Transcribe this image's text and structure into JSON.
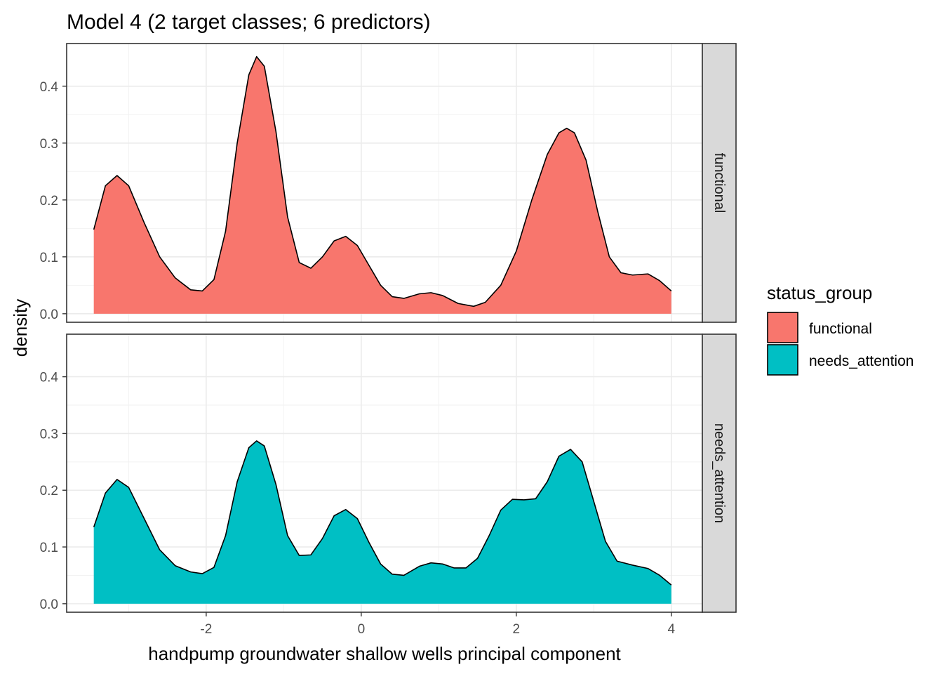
{
  "chart_data": {
    "type": "area",
    "title": "Model 4 (2 target classes; 6 predictors)",
    "xlabel": "handpump groundwater shallow wells principal component",
    "ylabel": "density",
    "xlim": [
      -3.8,
      4.4
    ],
    "ylim": [
      -0.015,
      0.475
    ],
    "x_ticks": [
      -2,
      0,
      2,
      4
    ],
    "x_tick_labels": [
      "-2",
      "0",
      "2",
      "4"
    ],
    "y_ticks": [
      0.0,
      0.1,
      0.2,
      0.3,
      0.4
    ],
    "y_tick_labels": [
      "0.0",
      "0.1",
      "0.2",
      "0.3",
      "0.4"
    ],
    "grid": true,
    "legend": {
      "title": "status_group",
      "placement": "right",
      "entries": [
        {
          "label": "functional",
          "color": "#F8766D"
        },
        {
          "label": "needs_attention",
          "color": "#00BFC4"
        }
      ]
    },
    "facets": [
      {
        "label": "functional",
        "color": "#F8766D",
        "points": [
          [
            -3.45,
            0.148
          ],
          [
            -3.3,
            0.225
          ],
          [
            -3.15,
            0.243
          ],
          [
            -3.0,
            0.225
          ],
          [
            -2.8,
            0.16
          ],
          [
            -2.6,
            0.1
          ],
          [
            -2.4,
            0.063
          ],
          [
            -2.2,
            0.042
          ],
          [
            -2.05,
            0.04
          ],
          [
            -1.9,
            0.06
          ],
          [
            -1.75,
            0.145
          ],
          [
            -1.6,
            0.3
          ],
          [
            -1.45,
            0.42
          ],
          [
            -1.35,
            0.452
          ],
          [
            -1.25,
            0.435
          ],
          [
            -1.1,
            0.32
          ],
          [
            -0.95,
            0.17
          ],
          [
            -0.8,
            0.09
          ],
          [
            -0.65,
            0.08
          ],
          [
            -0.5,
            0.1
          ],
          [
            -0.35,
            0.128
          ],
          [
            -0.2,
            0.136
          ],
          [
            -0.05,
            0.12
          ],
          [
            0.1,
            0.085
          ],
          [
            0.25,
            0.05
          ],
          [
            0.4,
            0.03
          ],
          [
            0.55,
            0.027
          ],
          [
            0.75,
            0.035
          ],
          [
            0.9,
            0.037
          ],
          [
            1.05,
            0.032
          ],
          [
            1.25,
            0.018
          ],
          [
            1.45,
            0.013
          ],
          [
            1.6,
            0.02
          ],
          [
            1.8,
            0.05
          ],
          [
            2.0,
            0.11
          ],
          [
            2.2,
            0.2
          ],
          [
            2.4,
            0.28
          ],
          [
            2.55,
            0.318
          ],
          [
            2.65,
            0.326
          ],
          [
            2.75,
            0.318
          ],
          [
            2.9,
            0.27
          ],
          [
            3.05,
            0.18
          ],
          [
            3.2,
            0.1
          ],
          [
            3.35,
            0.072
          ],
          [
            3.5,
            0.068
          ],
          [
            3.7,
            0.07
          ],
          [
            3.85,
            0.058
          ],
          [
            4.0,
            0.04
          ]
        ]
      },
      {
        "label": "needs_attention",
        "color": "#00BFC4",
        "points": [
          [
            -3.45,
            0.135
          ],
          [
            -3.3,
            0.195
          ],
          [
            -3.15,
            0.219
          ],
          [
            -3.0,
            0.205
          ],
          [
            -2.8,
            0.15
          ],
          [
            -2.6,
            0.095
          ],
          [
            -2.4,
            0.067
          ],
          [
            -2.2,
            0.056
          ],
          [
            -2.05,
            0.053
          ],
          [
            -1.9,
            0.064
          ],
          [
            -1.75,
            0.12
          ],
          [
            -1.6,
            0.215
          ],
          [
            -1.45,
            0.275
          ],
          [
            -1.35,
            0.287
          ],
          [
            -1.25,
            0.278
          ],
          [
            -1.1,
            0.21
          ],
          [
            -0.95,
            0.12
          ],
          [
            -0.8,
            0.085
          ],
          [
            -0.65,
            0.086
          ],
          [
            -0.5,
            0.115
          ],
          [
            -0.35,
            0.155
          ],
          [
            -0.2,
            0.166
          ],
          [
            -0.05,
            0.15
          ],
          [
            0.1,
            0.108
          ],
          [
            0.25,
            0.07
          ],
          [
            0.4,
            0.052
          ],
          [
            0.55,
            0.05
          ],
          [
            0.75,
            0.066
          ],
          [
            0.9,
            0.072
          ],
          [
            1.05,
            0.07
          ],
          [
            1.2,
            0.063
          ],
          [
            1.35,
            0.063
          ],
          [
            1.5,
            0.08
          ],
          [
            1.65,
            0.12
          ],
          [
            1.8,
            0.165
          ],
          [
            1.95,
            0.184
          ],
          [
            2.1,
            0.183
          ],
          [
            2.25,
            0.185
          ],
          [
            2.4,
            0.215
          ],
          [
            2.55,
            0.26
          ],
          [
            2.7,
            0.272
          ],
          [
            2.85,
            0.25
          ],
          [
            3.0,
            0.18
          ],
          [
            3.15,
            0.11
          ],
          [
            3.3,
            0.075
          ],
          [
            3.5,
            0.068
          ],
          [
            3.7,
            0.062
          ],
          [
            3.85,
            0.05
          ],
          [
            4.0,
            0.033
          ]
        ]
      }
    ]
  }
}
